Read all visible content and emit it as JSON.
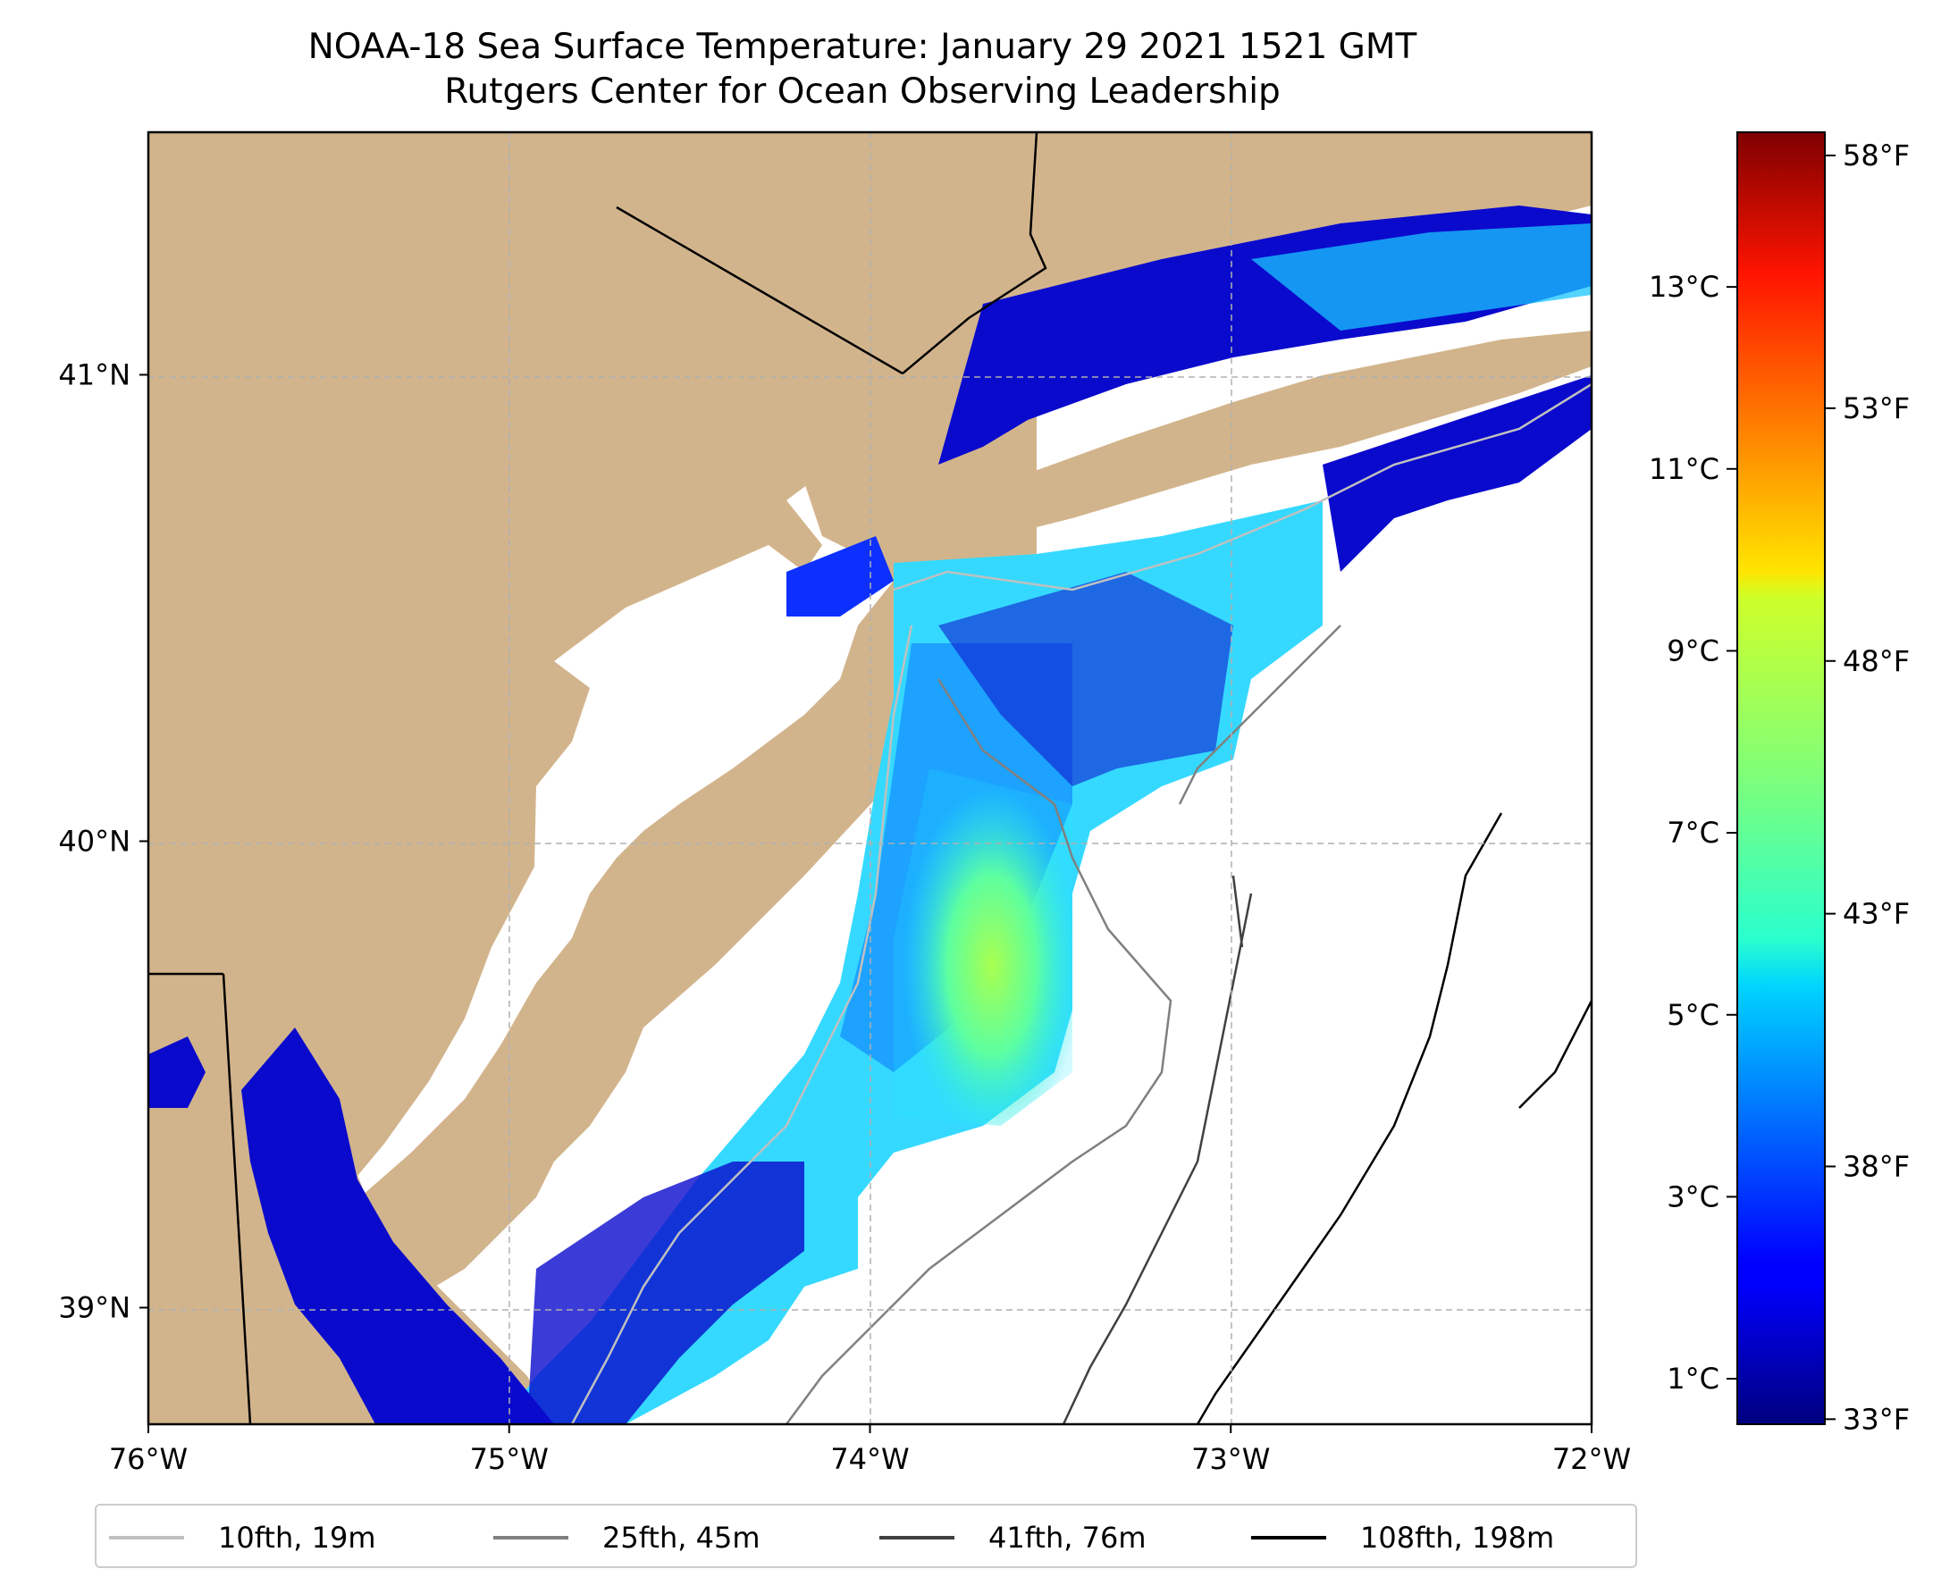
{
  "title": "NOAA-18 Sea Surface Temperature: January 29 2021 1521 GMT",
  "subtitle": "Rutgers Center for Ocean Observing Leadership",
  "map": {
    "extent": {
      "lon": [
        -76,
        -72
      ],
      "lat": [
        38.75,
        41.52
      ]
    },
    "x_ticks": [
      {
        "value": -76,
        "label": "76°W"
      },
      {
        "value": -75,
        "label": "75°W"
      },
      {
        "value": -74,
        "label": "74°W"
      },
      {
        "value": -73,
        "label": "73°W"
      },
      {
        "value": -72,
        "label": "72°W"
      }
    ],
    "y_ticks": [
      {
        "value": 41,
        "label": "41°N"
      },
      {
        "value": 40,
        "label": "40°N"
      },
      {
        "value": 39,
        "label": "39°N"
      }
    ],
    "land_color": "#d2b48c",
    "gridlines": "dashed",
    "grid_color": "#b0b0b0"
  },
  "colorbar": {
    "colormap": "jet",
    "celsius_range": [
      0.5,
      14.7
    ],
    "celsius_ticks": [
      {
        "value": 1,
        "label": "1°C"
      },
      {
        "value": 3,
        "label": "3°C"
      },
      {
        "value": 5,
        "label": "5°C"
      },
      {
        "value": 7,
        "label": "7°C"
      },
      {
        "value": 9,
        "label": "9°C"
      },
      {
        "value": 11,
        "label": "11°C"
      },
      {
        "value": 13,
        "label": "13°C"
      }
    ],
    "fahrenheit_ticks": [
      {
        "value": 33,
        "label": "33°F"
      },
      {
        "value": 38,
        "label": "38°F"
      },
      {
        "value": 43,
        "label": "43°F"
      },
      {
        "value": 48,
        "label": "48°F"
      },
      {
        "value": 53,
        "label": "53°F"
      },
      {
        "value": 58,
        "label": "58°F"
      }
    ]
  },
  "legend": {
    "items": [
      {
        "label": "10fth, 19m",
        "color": "#c0c0c0"
      },
      {
        "label": "25fth, 45m",
        "color": "#808080"
      },
      {
        "label": "41fth, 76m",
        "color": "#404040"
      },
      {
        "label": "108fth, 198m",
        "color": "#000000"
      }
    ]
  }
}
